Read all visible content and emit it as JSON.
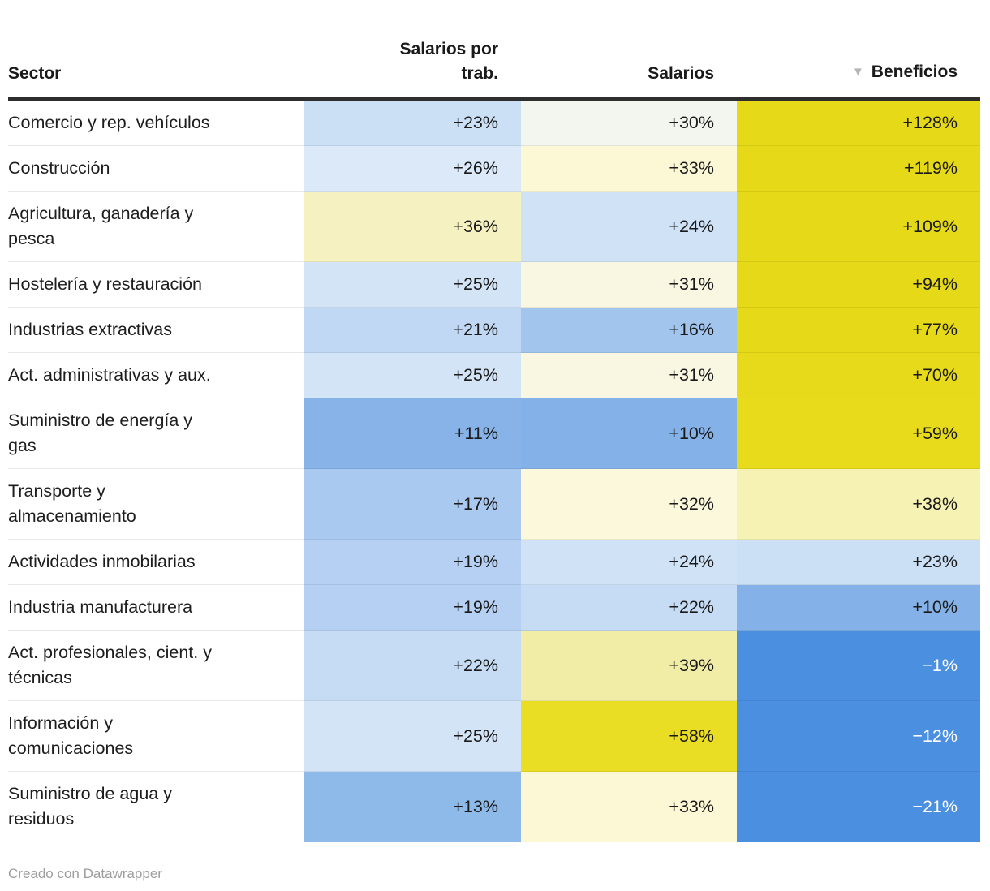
{
  "table": {
    "columns": [
      {
        "label": "Sector"
      },
      {
        "label": "Salarios por\ntrab."
      },
      {
        "label": "Salarios"
      },
      {
        "label": "Beneficios",
        "sort_icon": "▼",
        "sort_state": "descending"
      }
    ],
    "rows": [
      {
        "sector": "Comercio y rep. vehículos",
        "values": [
          {
            "text": "+23%",
            "bg": "#cbdff5",
            "fg": "#1a1a1a"
          },
          {
            "text": "+30%",
            "bg": "#f2f6ee",
            "fg": "#1a1a1a"
          },
          {
            "text": "+128%",
            "bg": "#e6d918",
            "fg": "#1a1a1a"
          }
        ]
      },
      {
        "sector": "Construcción",
        "values": [
          {
            "text": "+26%",
            "bg": "#dbe9f9",
            "fg": "#1a1a1a"
          },
          {
            "text": "+33%",
            "bg": "#fcf8d5",
            "fg": "#1a1a1a"
          },
          {
            "text": "+119%",
            "bg": "#e6d918",
            "fg": "#1a1a1a"
          }
        ]
      },
      {
        "sector": "Agricultura, ganadería y\npesca",
        "values": [
          {
            "text": "+36%",
            "bg": "#f5f1c0",
            "fg": "#1a1a1a"
          },
          {
            "text": "+24%",
            "bg": "#cfe2f6",
            "fg": "#1a1a1a"
          },
          {
            "text": "+109%",
            "bg": "#e6d918",
            "fg": "#1a1a1a"
          }
        ]
      },
      {
        "sector": "Hostelería y restauración",
        "values": [
          {
            "text": "+25%",
            "bg": "#d4e4f7",
            "fg": "#1a1a1a"
          },
          {
            "text": "+31%",
            "bg": "#f9f6e1",
            "fg": "#1a1a1a"
          },
          {
            "text": "+94%",
            "bg": "#e6d918",
            "fg": "#1a1a1a"
          }
        ]
      },
      {
        "sector": "Industrias extractivas",
        "values": [
          {
            "text": "+21%",
            "bg": "#c0d8f3",
            "fg": "#1a1a1a"
          },
          {
            "text": "+16%",
            "bg": "#a2c5ee",
            "fg": "#1a1a1a"
          },
          {
            "text": "+77%",
            "bg": "#e6d918",
            "fg": "#1a1a1a"
          }
        ]
      },
      {
        "sector": "Act. administrativas y aux.",
        "values": [
          {
            "text": "+25%",
            "bg": "#d4e4f7",
            "fg": "#1a1a1a"
          },
          {
            "text": "+31%",
            "bg": "#f9f6e1",
            "fg": "#1a1a1a"
          },
          {
            "text": "+70%",
            "bg": "#e7da1a",
            "fg": "#1a1a1a"
          }
        ]
      },
      {
        "sector": "Suministro de energía y\ngas",
        "values": [
          {
            "text": "+11%",
            "bg": "#87b3e8",
            "fg": "#1a1a1a"
          },
          {
            "text": "+10%",
            "bg": "#84b1e7",
            "fg": "#1a1a1a"
          },
          {
            "text": "+59%",
            "bg": "#e8db1c",
            "fg": "#1a1a1a"
          }
        ]
      },
      {
        "sector": "Transporte y\nalmacenamiento",
        "values": [
          {
            "text": "+17%",
            "bg": "#a9c9f0",
            "fg": "#1a1a1a"
          },
          {
            "text": "+32%",
            "bg": "#fbf8dc",
            "fg": "#1a1a1a"
          },
          {
            "text": "+38%",
            "bg": "#f6f2b4",
            "fg": "#1a1a1a"
          }
        ]
      },
      {
        "sector": "Actividades inmobilarias",
        "values": [
          {
            "text": "+19%",
            "bg": "#b5d0f2",
            "fg": "#1a1a1a"
          },
          {
            "text": "+24%",
            "bg": "#cfe2f6",
            "fg": "#1a1a1a"
          },
          {
            "text": "+23%",
            "bg": "#cbdff5",
            "fg": "#1a1a1a"
          }
        ]
      },
      {
        "sector": "Industria manufacturera",
        "values": [
          {
            "text": "+19%",
            "bg": "#b5d0f2",
            "fg": "#1a1a1a"
          },
          {
            "text": "+22%",
            "bg": "#c6dcf4",
            "fg": "#1a1a1a"
          },
          {
            "text": "+10%",
            "bg": "#84b1e7",
            "fg": "#1a1a1a"
          }
        ]
      },
      {
        "sector": "Act. profesionales, cient. y\ntécnicas",
        "values": [
          {
            "text": "+22%",
            "bg": "#c6dcf4",
            "fg": "#1a1a1a"
          },
          {
            "text": "+39%",
            "bg": "#f1eda6",
            "fg": "#1a1a1a"
          },
          {
            "text": "−1%",
            "bg": "#4a8fe0",
            "fg": "#ffffff"
          }
        ]
      },
      {
        "sector": "Información y\ncomunicaciones",
        "values": [
          {
            "text": "+25%",
            "bg": "#d4e4f7",
            "fg": "#1a1a1a"
          },
          {
            "text": "+58%",
            "bg": "#eade24",
            "fg": "#1a1a1a"
          },
          {
            "text": "−12%",
            "bg": "#4a8fe0",
            "fg": "#ffffff"
          }
        ]
      },
      {
        "sector": "Suministro de agua y\nresiduos",
        "values": [
          {
            "text": "+13%",
            "bg": "#8ebae9",
            "fg": "#1a1a1a"
          },
          {
            "text": "+33%",
            "bg": "#fcf8d5",
            "fg": "#1a1a1a"
          },
          {
            "text": "−21%",
            "bg": "#4a8fe0",
            "fg": "#ffffff"
          }
        ]
      }
    ]
  },
  "footer": {
    "credit": "Creado con Datawrapper"
  },
  "colors": {
    "strong_yellow_high": "#e6d918",
    "strong_blue_negative": "#4a8fe0",
    "header_rule": "#2e2e2e",
    "row_divider": "#e8e8e8",
    "sort_arrow_gray": "#b5b5b5",
    "credit_gray": "#9e9e9e"
  },
  "chart_data": {
    "type": "heatmap",
    "title": "",
    "categories": [
      "Comercio y rep. vehículos",
      "Construcción",
      "Agricultura, ganadería y pesca",
      "Hostelería y restauración",
      "Industrias extractivas",
      "Act. administrativas y aux.",
      "Suministro de energía y gas",
      "Transporte y almacenamiento",
      "Actividades inmobilarias",
      "Industria manufacturera",
      "Act. profesionales, cient. y técnicas",
      "Información y comunicaciones",
      "Suministro de agua y residuos"
    ],
    "series": [
      {
        "name": "Salarios por trab.",
        "values": [
          23,
          26,
          36,
          25,
          21,
          25,
          11,
          17,
          19,
          19,
          22,
          25,
          13
        ]
      },
      {
        "name": "Salarios",
        "values": [
          30,
          33,
          24,
          31,
          16,
          31,
          10,
          32,
          24,
          22,
          39,
          58,
          33
        ]
      },
      {
        "name": "Beneficios",
        "values": [
          128,
          119,
          109,
          94,
          77,
          70,
          59,
          38,
          23,
          10,
          -1,
          -12,
          -21
        ]
      }
    ],
    "value_unit": "%",
    "value_prefix_positive": "+",
    "sorted_by": {
      "column": "Beneficios",
      "direction": "descending"
    },
    "color_scale": {
      "type": "diverging",
      "low": "#4a8fe0",
      "mid": "#ffffff",
      "high": "#e6d918",
      "mid_value": 28
    },
    "legend_position": "none",
    "grid": "row-dividers"
  }
}
